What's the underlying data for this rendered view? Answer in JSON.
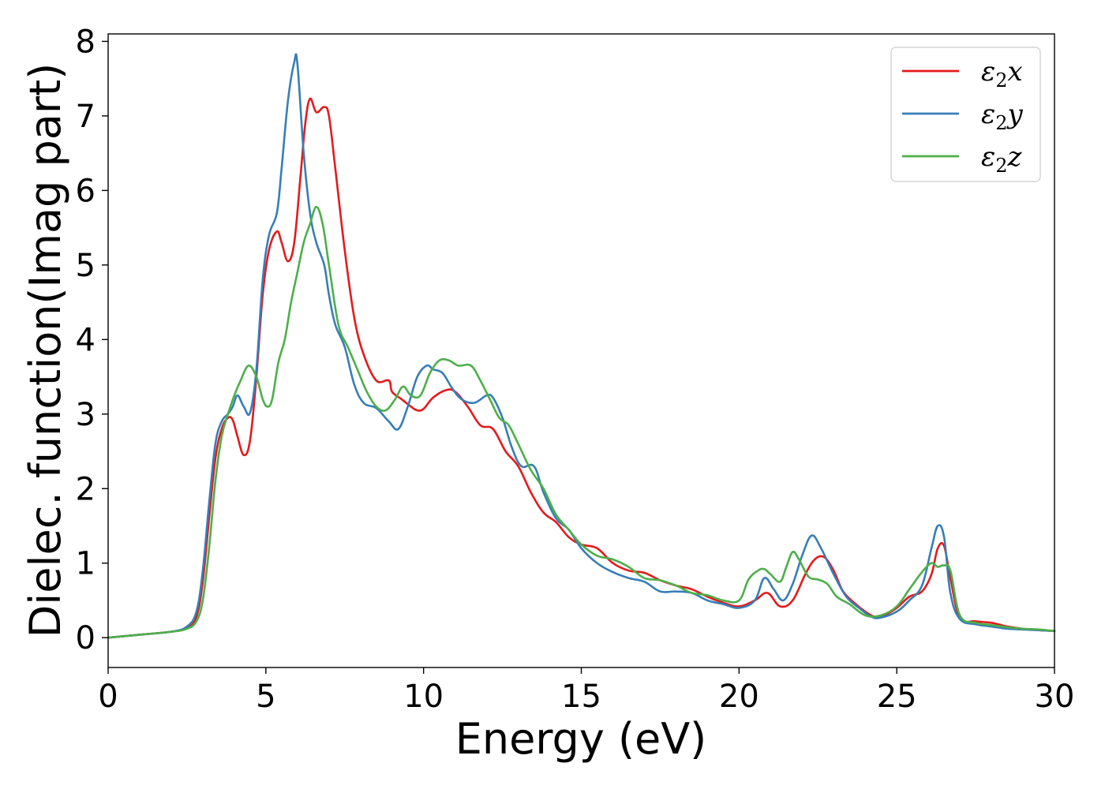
{
  "chart_data": {
    "type": "line",
    "title": "",
    "xlabel": "Energy (eV)",
    "ylabel": "Dielec. function(Imag part)",
    "xlim": [
      0,
      30
    ],
    "ylim": [
      -0.4,
      8.1
    ],
    "xticks": [
      0,
      5,
      10,
      15,
      20,
      25,
      30
    ],
    "yticks": [
      0,
      1,
      2,
      3,
      4,
      5,
      6,
      7,
      8
    ],
    "grid": false,
    "legend_position": "top-right",
    "series": [
      {
        "name": "ε₂x",
        "legend": {
          "base": "ε",
          "sub": "2",
          "suffix": "x"
        },
        "color": "#e41a1c",
        "x": [
          0,
          1,
          2,
          2.5,
          2.8,
          3.0,
          3.2,
          3.4,
          3.6,
          3.8,
          3.95,
          4.1,
          4.3,
          4.5,
          4.7,
          4.9,
          5.1,
          5.35,
          5.5,
          5.7,
          5.9,
          6.1,
          6.25,
          6.4,
          6.6,
          6.85,
          7.0,
          7.2,
          7.5,
          7.8,
          8.1,
          8.5,
          8.9,
          9.0,
          9.3,
          9.6,
          9.8,
          10.0,
          10.3,
          10.7,
          11.0,
          11.4,
          11.8,
          12.2,
          12.6,
          13.0,
          13.4,
          13.8,
          14.2,
          14.6,
          15.0,
          15.5,
          16.0,
          16.5,
          17.0,
          17.5,
          18.0,
          18.5,
          19.0,
          19.5,
          20.0,
          20.5,
          20.9,
          21.3,
          21.7,
          22.1,
          22.4,
          22.7,
          23.0,
          23.3,
          23.7,
          24.0,
          24.3,
          24.6,
          25.0,
          25.4,
          25.8,
          26.1,
          26.3,
          26.5,
          26.7,
          27.0,
          27.5,
          28.0,
          28.5,
          29.0,
          29.5,
          30.0
        ],
        "values": [
          0.0,
          0.04,
          0.08,
          0.13,
          0.28,
          0.75,
          1.6,
          2.4,
          2.8,
          2.95,
          2.92,
          2.7,
          2.45,
          2.65,
          3.5,
          4.6,
          5.2,
          5.45,
          5.3,
          5.05,
          5.3,
          6.2,
          6.9,
          7.23,
          7.05,
          7.12,
          7.0,
          6.3,
          5.2,
          4.3,
          3.8,
          3.45,
          3.45,
          3.3,
          3.2,
          3.1,
          3.05,
          3.07,
          3.22,
          3.32,
          3.3,
          3.1,
          2.85,
          2.8,
          2.5,
          2.3,
          1.95,
          1.68,
          1.55,
          1.35,
          1.25,
          1.2,
          1.0,
          0.9,
          0.87,
          0.77,
          0.7,
          0.65,
          0.55,
          0.47,
          0.42,
          0.5,
          0.6,
          0.42,
          0.5,
          0.85,
          1.05,
          1.08,
          0.9,
          0.62,
          0.45,
          0.35,
          0.28,
          0.3,
          0.4,
          0.55,
          0.62,
          0.85,
          1.2,
          1.23,
          0.8,
          0.27,
          0.22,
          0.2,
          0.15,
          0.12,
          0.1,
          0.09
        ]
      },
      {
        "name": "ε₂y",
        "legend": {
          "base": "ε",
          "sub": "2",
          "suffix": "y"
        },
        "color": "#377eb8",
        "x": [
          0,
          1,
          2,
          2.5,
          2.8,
          3.0,
          3.2,
          3.4,
          3.6,
          3.8,
          3.95,
          4.1,
          4.3,
          4.5,
          4.7,
          4.9,
          5.1,
          5.35,
          5.5,
          5.7,
          5.9,
          6.0,
          6.2,
          6.4,
          6.6,
          6.85,
          7.0,
          7.2,
          7.5,
          7.8,
          8.1,
          8.5,
          8.9,
          9.2,
          9.5,
          9.8,
          10.1,
          10.3,
          10.6,
          10.9,
          11.2,
          11.6,
          12.0,
          12.2,
          12.5,
          12.8,
          13.1,
          13.5,
          13.8,
          14.2,
          14.6,
          15.0,
          15.5,
          16.0,
          16.5,
          17.0,
          17.5,
          18.0,
          18.5,
          19.0,
          19.5,
          20.0,
          20.5,
          20.8,
          21.1,
          21.4,
          21.7,
          22.0,
          22.3,
          22.6,
          23.0,
          23.4,
          23.8,
          24.2,
          24.5,
          25.0,
          25.4,
          25.8,
          26.1,
          26.3,
          26.5,
          26.7,
          27.0,
          27.5,
          28.0,
          28.5,
          29.0,
          29.5,
          30.0
        ],
        "values": [
          0.0,
          0.04,
          0.08,
          0.15,
          0.35,
          0.9,
          1.8,
          2.6,
          2.9,
          3.0,
          3.1,
          3.25,
          3.1,
          3.02,
          3.6,
          4.8,
          5.4,
          5.7,
          6.3,
          7.2,
          7.72,
          7.7,
          6.5,
          5.7,
          5.3,
          5.0,
          4.6,
          4.2,
          3.9,
          3.4,
          3.15,
          3.08,
          2.9,
          2.8,
          3.1,
          3.5,
          3.65,
          3.6,
          3.55,
          3.35,
          3.2,
          3.15,
          3.25,
          3.22,
          2.95,
          2.55,
          2.3,
          2.3,
          1.95,
          1.6,
          1.45,
          1.2,
          1.0,
          0.88,
          0.8,
          0.75,
          0.62,
          0.62,
          0.6,
          0.5,
          0.45,
          0.4,
          0.5,
          0.8,
          0.65,
          0.5,
          0.72,
          1.1,
          1.37,
          1.2,
          0.85,
          0.55,
          0.4,
          0.28,
          0.27,
          0.35,
          0.5,
          0.7,
          1.2,
          1.5,
          1.35,
          0.6,
          0.25,
          0.18,
          0.15,
          0.12,
          0.11,
          0.1,
          0.09
        ]
      },
      {
        "name": "ε₂z",
        "legend": {
          "base": "ε",
          "sub": "2",
          "suffix": "z"
        },
        "color": "#4daf4a",
        "x": [
          0,
          1,
          2,
          2.5,
          2.8,
          3.0,
          3.2,
          3.4,
          3.6,
          3.8,
          4.0,
          4.2,
          4.45,
          4.7,
          4.9,
          5.05,
          5.2,
          5.4,
          5.6,
          5.8,
          6.0,
          6.2,
          6.4,
          6.6,
          6.8,
          7.0,
          7.3,
          7.6,
          7.9,
          8.2,
          8.5,
          8.8,
          9.1,
          9.35,
          9.6,
          9.9,
          10.2,
          10.5,
          10.8,
          11.1,
          11.5,
          11.8,
          12.1,
          12.4,
          12.7,
          13.0,
          13.4,
          13.8,
          14.2,
          14.6,
          15.0,
          15.5,
          16.0,
          16.5,
          17.0,
          17.5,
          18.0,
          18.5,
          19.0,
          19.5,
          20.0,
          20.3,
          20.6,
          20.8,
          21.0,
          21.3,
          21.5,
          21.7,
          21.9,
          22.2,
          22.5,
          22.8,
          23.1,
          23.5,
          24.0,
          24.5,
          25.0,
          25.4,
          25.8,
          26.1,
          26.3,
          26.5,
          26.7,
          27.0,
          27.5,
          28.0,
          28.5,
          29.0,
          29.5,
          30.0
        ],
        "values": [
          0.0,
          0.04,
          0.08,
          0.12,
          0.22,
          0.5,
          1.2,
          2.1,
          2.7,
          3.0,
          3.25,
          3.45,
          3.65,
          3.5,
          3.2,
          3.1,
          3.2,
          3.7,
          4.0,
          4.5,
          4.9,
          5.3,
          5.55,
          5.78,
          5.55,
          5.0,
          4.2,
          3.9,
          3.6,
          3.3,
          3.1,
          3.05,
          3.2,
          3.37,
          3.25,
          3.25,
          3.55,
          3.72,
          3.72,
          3.65,
          3.65,
          3.45,
          3.2,
          2.95,
          2.85,
          2.6,
          2.25,
          2.0,
          1.65,
          1.45,
          1.25,
          1.1,
          1.05,
          0.95,
          0.8,
          0.77,
          0.7,
          0.6,
          0.57,
          0.5,
          0.5,
          0.78,
          0.9,
          0.92,
          0.85,
          0.75,
          0.95,
          1.15,
          1.05,
          0.82,
          0.78,
          0.72,
          0.55,
          0.45,
          0.3,
          0.3,
          0.42,
          0.65,
          0.88,
          1.0,
          0.95,
          0.97,
          0.9,
          0.3,
          0.2,
          0.17,
          0.14,
          0.12,
          0.11,
          0.09
        ]
      }
    ]
  }
}
